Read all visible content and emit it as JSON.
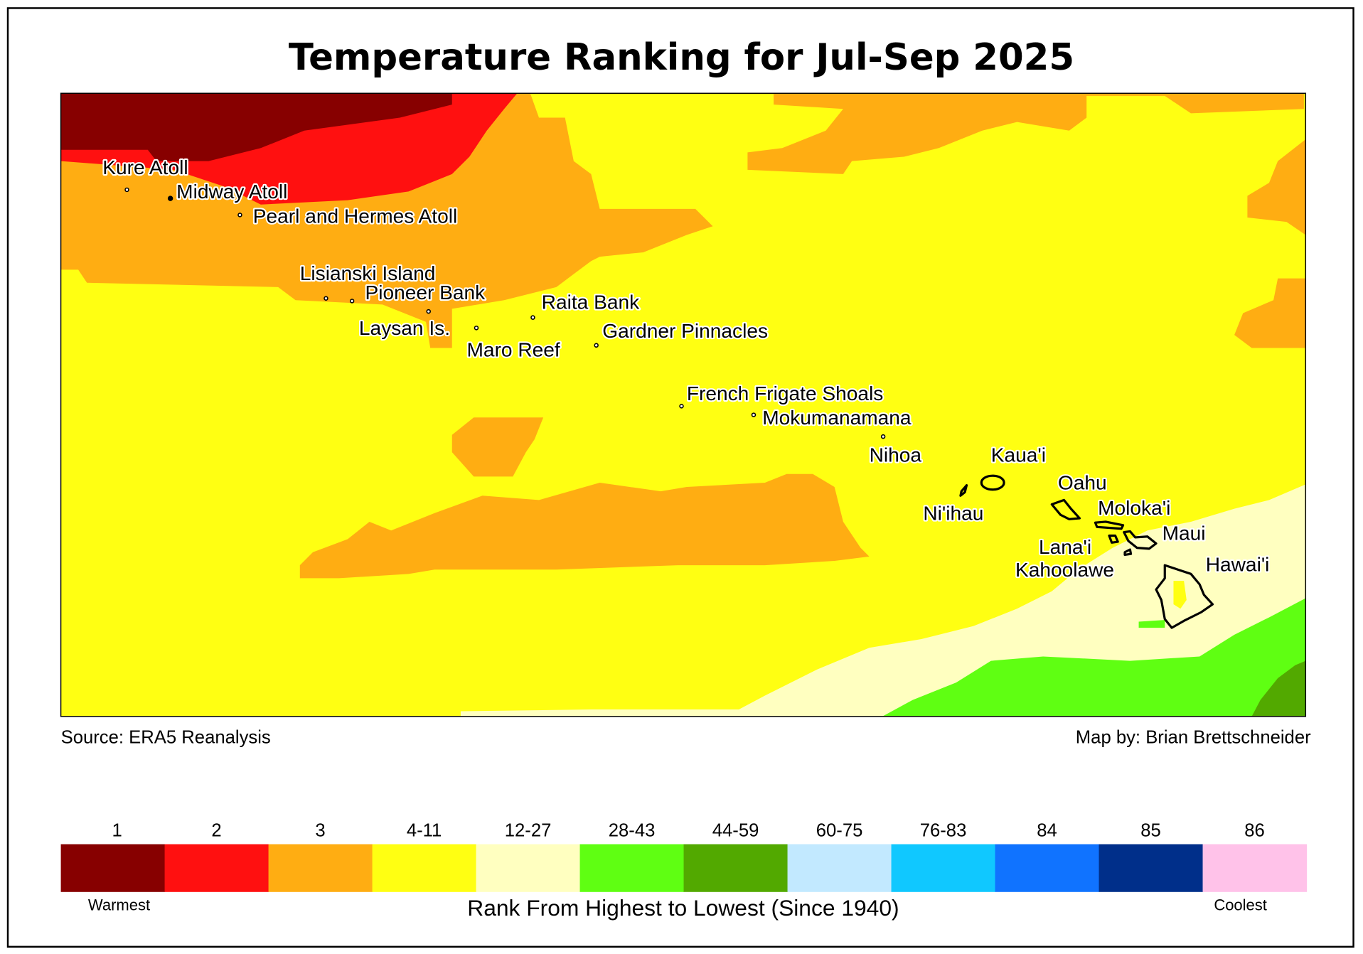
{
  "title": "Temperature Ranking for Jul-Sep 2025",
  "source": "Source: ERA5 Reanalysis",
  "credit": "Map by: Brian Brettschneider",
  "colors": {
    "rank_1": "#870000",
    "rank_2": "#ff1010",
    "rank_3": "#ffad12",
    "rank_4_11": "#ffff12",
    "rank_12_27": "#ffffc0",
    "rank_28_43": "#5fff12",
    "rank_44_59": "#52a900",
    "rank_60_75": "#c2e9ff",
    "rank_76_83": "#10c8ff",
    "rank_84": "#1073ff",
    "rank_85": "#002f8a",
    "rank_86": "#ffc2e9"
  },
  "legend": {
    "items": [
      {
        "label": "1",
        "color": "#870000"
      },
      {
        "label": "2",
        "color": "#ff1010"
      },
      {
        "label": "3",
        "color": "#ffad12"
      },
      {
        "label": "4-11",
        "color": "#ffff12"
      },
      {
        "label": "12-27",
        "color": "#ffffc0"
      },
      {
        "label": "28-43",
        "color": "#5fff12"
      },
      {
        "label": "44-59",
        "color": "#52a900"
      },
      {
        "label": "60-75",
        "color": "#c2e9ff"
      },
      {
        "label": "76-83",
        "color": "#10c8ff"
      },
      {
        "label": "84",
        "color": "#1073ff"
      },
      {
        "label": "85",
        "color": "#002f8a"
      },
      {
        "label": "86",
        "color": "#ffc2e9"
      }
    ],
    "low_label": "Warmest",
    "high_label": "Coolest",
    "axis_title": "Rank From Highest to Lowest (Since 1940)"
  },
  "places": [
    {
      "name": "Kure Atoll"
    },
    {
      "name": "Midway Atoll"
    },
    {
      "name": "Pearl and Hermes Atoll"
    },
    {
      "name": "Lisianski Island"
    },
    {
      "name": "Pioneer Bank"
    },
    {
      "name": "Raita Bank"
    },
    {
      "name": "Laysan Is."
    },
    {
      "name": "Maro Reef"
    },
    {
      "name": "Gardner Pinnacles"
    },
    {
      "name": "French Frigate Shoals"
    },
    {
      "name": "Mokumanamana"
    },
    {
      "name": "Nihoa"
    },
    {
      "name": "Kaua'i"
    },
    {
      "name": "Oahu"
    },
    {
      "name": "Ni'ihau"
    },
    {
      "name": "Moloka'i"
    },
    {
      "name": "Maui"
    },
    {
      "name": "Lana'i"
    },
    {
      "name": "Kahoolawe"
    },
    {
      "name": "Hawai'i"
    }
  ]
}
